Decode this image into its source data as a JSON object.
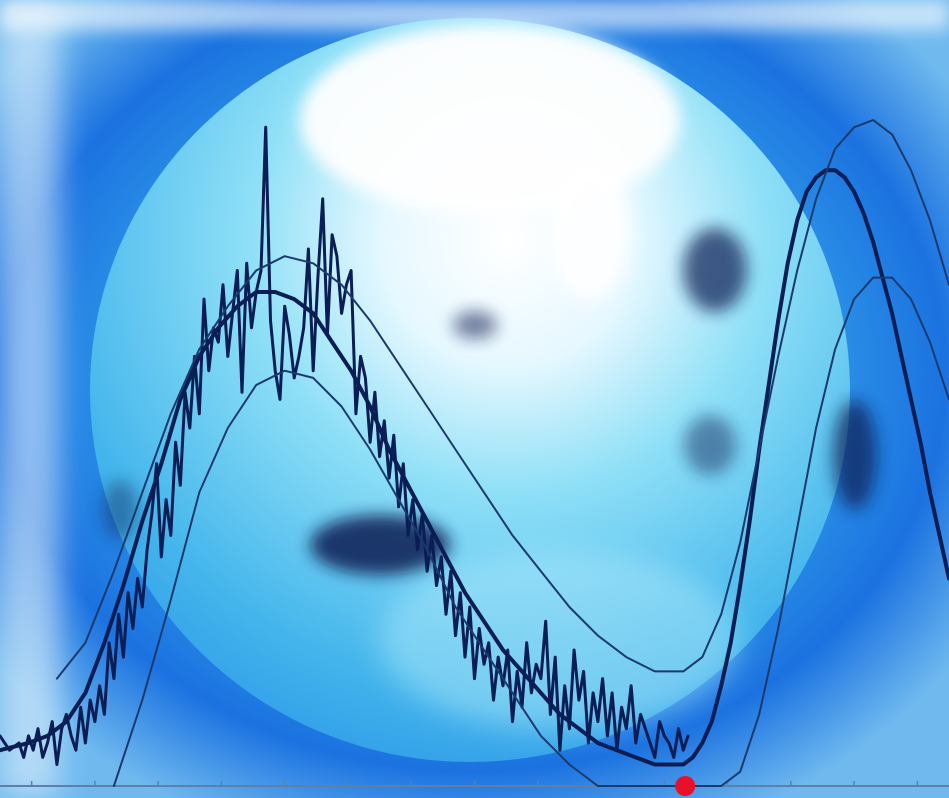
{
  "background": {
    "subject": "sun-disk",
    "colors": {
      "halo_outer": "#1b72e0",
      "halo_inner": "#2a8fe6",
      "disk_light": "#8fe0f7",
      "disk_white": "#ffffff",
      "dark_spot": "#0d1d52"
    }
  },
  "chart_data": {
    "type": "line",
    "title": "",
    "xlabel": "",
    "ylabel": "",
    "xlim": [
      0,
      100
    ],
    "ylim": [
      0,
      100
    ],
    "grid": false,
    "axis_ticks": 15,
    "series": [
      {
        "role": "observed",
        "color": "#0a1e55",
        "width": 3,
        "x": [
          0,
          1,
          2,
          2.5,
          3,
          3.5,
          4,
          4.5,
          5,
          5.5,
          6,
          6.5,
          7,
          7.5,
          8,
          8.5,
          9,
          9.5,
          10,
          10.5,
          11,
          11.5,
          12,
          12.5,
          13,
          13.5,
          14,
          14.5,
          15,
          15.5,
          16,
          16.5,
          17,
          17.5,
          18,
          18.5,
          19,
          19.5,
          20,
          20.5,
          21,
          21.5,
          22,
          22.5,
          23,
          23.5,
          24,
          24.5,
          25,
          25.5,
          26,
          26.5,
          27,
          27.5,
          28,
          28.5,
          29,
          29.5,
          30,
          30.5,
          31,
          31.5,
          32,
          32.5,
          33,
          33.5,
          34,
          34.5,
          35,
          35.5,
          36,
          36.5,
          37,
          37.5,
          38,
          38.5,
          39,
          39.5,
          40,
          40.5,
          41,
          41.5,
          42,
          42.5,
          43,
          43.5,
          44,
          44.5,
          45,
          45.5,
          46,
          46.5,
          47,
          47.5,
          48,
          48.5,
          49,
          49.5,
          50,
          50.5,
          51,
          51.5,
          52,
          52.5,
          53,
          53.5,
          54,
          54.5,
          55,
          55.5,
          56,
          56.5,
          57,
          57.5,
          58,
          58.5,
          59,
          59.5,
          60,
          60.5,
          61,
          61.5,
          62,
          62.5,
          63,
          63.5,
          64,
          64.5,
          65,
          65.5,
          66,
          66.5,
          67,
          67.5,
          68,
          68.5,
          69,
          69.5,
          70,
          70.5,
          71,
          71.5,
          72,
          72.5
        ],
        "y": [
          7,
          5,
          6,
          4,
          7,
          5,
          8,
          4,
          6,
          9,
          3,
          8,
          10,
          7,
          5,
          11,
          6,
          12,
          9,
          14,
          10,
          20,
          15,
          24,
          18,
          27,
          22,
          29,
          25,
          33,
          38,
          45,
          32,
          40,
          35,
          48,
          42,
          55,
          50,
          60,
          52,
          68,
          58,
          64,
          62,
          70,
          60,
          66,
          72,
          55,
          73,
          64,
          69,
          72,
          92,
          65,
          58,
          54,
          67,
          63,
          57,
          60,
          64,
          75,
          58,
          71,
          82,
          63,
          77,
          74,
          66,
          70,
          72,
          52,
          60,
          57,
          48,
          55,
          46,
          51,
          43,
          49,
          39,
          45,
          35,
          40,
          33,
          38,
          30,
          35,
          28,
          32,
          24,
          30,
          21,
          27,
          18,
          25,
          15,
          22,
          17,
          20,
          12,
          18,
          14,
          19,
          9,
          16,
          11,
          20,
          13,
          17,
          15,
          23,
          10,
          18,
          5,
          14,
          8,
          19,
          12,
          16,
          6,
          13,
          9,
          15,
          7,
          13,
          5,
          11,
          8,
          14,
          6,
          10,
          8,
          6,
          4,
          9,
          7,
          6,
          4,
          8,
          5,
          7
        ]
      },
      {
        "role": "mean",
        "color": "#0a1e55",
        "width": 4,
        "x": [
          0,
          3,
          5,
          7,
          9,
          11,
          13,
          15,
          17,
          19,
          21,
          23,
          25,
          27,
          29,
          31,
          33,
          35,
          37,
          39,
          41,
          43,
          45,
          47,
          49,
          51,
          53,
          55,
          57,
          59,
          61,
          63,
          65,
          67,
          69,
          71,
          72,
          73,
          74,
          75,
          76,
          77,
          78,
          79,
          80,
          81,
          82,
          83,
          84,
          85,
          86,
          87,
          88,
          89,
          90,
          91,
          92,
          93,
          94,
          95,
          96,
          97,
          98,
          99,
          100
        ],
        "y": [
          5,
          6,
          7,
          9,
          13,
          20,
          28,
          37,
          45,
          54,
          60,
          64,
          67,
          69,
          69,
          68,
          66,
          62,
          58,
          53,
          47,
          42,
          37,
          32,
          27,
          23,
          19,
          16,
          13,
          10,
          8,
          6,
          5,
          4,
          3,
          3,
          3,
          4,
          6,
          9,
          14,
          20,
          28,
          37,
          47,
          56,
          65,
          73,
          79,
          83,
          85,
          86,
          86,
          85,
          83,
          80,
          76,
          71,
          66,
          60,
          54,
          48,
          41,
          35,
          29
        ]
      },
      {
        "role": "upper-bound",
        "color": "#1a3a6e",
        "width": 2,
        "x": [
          6,
          9,
          12,
          15,
          18,
          21,
          24,
          27,
          30,
          33,
          36,
          39,
          42,
          45,
          48,
          51,
          54,
          57,
          60,
          63,
          66,
          69,
          72,
          74,
          76,
          78,
          80,
          82,
          84,
          86,
          88,
          90,
          92,
          94,
          96,
          98,
          100
        ],
        "y": [
          15,
          20,
          30,
          41,
          52,
          61,
          67,
          72,
          74,
          73,
          70,
          65,
          59,
          53,
          47,
          41,
          35,
          30,
          25,
          21,
          18,
          16,
          16,
          18,
          24,
          34,
          47,
          60,
          72,
          82,
          89,
          92,
          93,
          91,
          86,
          79,
          70
        ]
      },
      {
        "role": "lower-bound",
        "color": "#1a3a6e",
        "width": 2,
        "x": [
          12,
          15,
          18,
          21,
          24,
          27,
          30,
          33,
          36,
          39,
          42,
          45,
          48,
          51,
          54,
          57,
          60,
          63,
          66,
          69,
          72,
          74,
          76,
          78,
          80,
          82,
          84,
          86,
          88,
          90,
          92,
          94,
          96,
          98,
          100
        ],
        "y": [
          0,
          12,
          26,
          41,
          50,
          56,
          58,
          57,
          53,
          47,
          40,
          33,
          25,
          19,
          13,
          7,
          3,
          0,
          0,
          0,
          0,
          0,
          0,
          2,
          10,
          22,
          36,
          50,
          61,
          68,
          71,
          71,
          68,
          62,
          54
        ]
      }
    ],
    "marker": {
      "x": 72.2,
      "y": 0,
      "color": "#e8102a"
    }
  }
}
